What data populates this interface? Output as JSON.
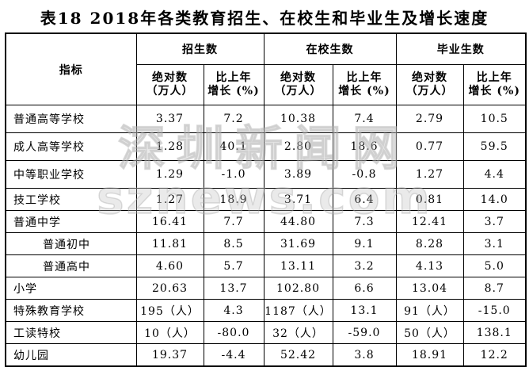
{
  "title": "表18 2018年各类教育招生、在校生和毕业生及增长速度",
  "watermark": {
    "line1": "深圳新闻网",
    "line2": "sznews.com"
  },
  "colors": {
    "text": "#000000",
    "border": "#000000",
    "background": "#ffffff",
    "watermark": "#bbbbbb"
  },
  "table": {
    "indicator_header": "指标",
    "groups": [
      "招生数",
      "在校生数",
      "毕业生数"
    ],
    "sub": {
      "abs1": "绝对数",
      "abs2": "（万人）",
      "growth1": "比上年",
      "growth2": "增长 (%)"
    },
    "rows": [
      {
        "label": "普通高等学校",
        "indent": false,
        "values": [
          "3.37",
          "7.2",
          "10.38",
          "7.4",
          "2.79",
          "10.5"
        ]
      },
      {
        "label": "成人高等学校",
        "indent": false,
        "values": [
          "1.28",
          "40.1",
          "2.80",
          "18.6",
          "0.77",
          "59.5"
        ]
      },
      {
        "label": "中等职业学校",
        "indent": false,
        "values": [
          "1.29",
          "-1.0",
          "3.89",
          "-0.8",
          "1.27",
          "4.4"
        ]
      },
      {
        "label": "技工学校",
        "indent": false,
        "values": [
          "1.27",
          "18.9",
          "3.71",
          "6.4",
          "0.81",
          "14.0"
        ]
      },
      {
        "label": "普通中学",
        "indent": false,
        "values": [
          "16.41",
          "7.7",
          "44.80",
          "7.3",
          "12.41",
          "3.7"
        ]
      },
      {
        "label": "普通初中",
        "indent": true,
        "values": [
          "11.81",
          "8.5",
          "31.69",
          "9.1",
          "8.28",
          "3.1"
        ]
      },
      {
        "label": "普通高中",
        "indent": true,
        "values": [
          "4.60",
          "5.7",
          "13.11",
          "3.2",
          "4.13",
          "5.0"
        ]
      },
      {
        "label": "小学",
        "indent": false,
        "values": [
          "20.63",
          "13.7",
          "102.80",
          "6.6",
          "13.04",
          "8.7"
        ]
      },
      {
        "label": "特殊教育学校",
        "indent": false,
        "values": [
          "195（人）",
          "4.3",
          "1187（人）",
          "13.1",
          "91（人）",
          "-15.0"
        ]
      },
      {
        "label": "工读特校",
        "indent": false,
        "values": [
          "10（人）",
          "-80.0",
          "32（人）",
          "-59.0",
          "50（人）",
          "138.1"
        ]
      },
      {
        "label": "幼儿园",
        "indent": false,
        "values": [
          "19.37",
          "-4.4",
          "52.42",
          "3.8",
          "18.91",
          "12.2"
        ]
      }
    ]
  }
}
